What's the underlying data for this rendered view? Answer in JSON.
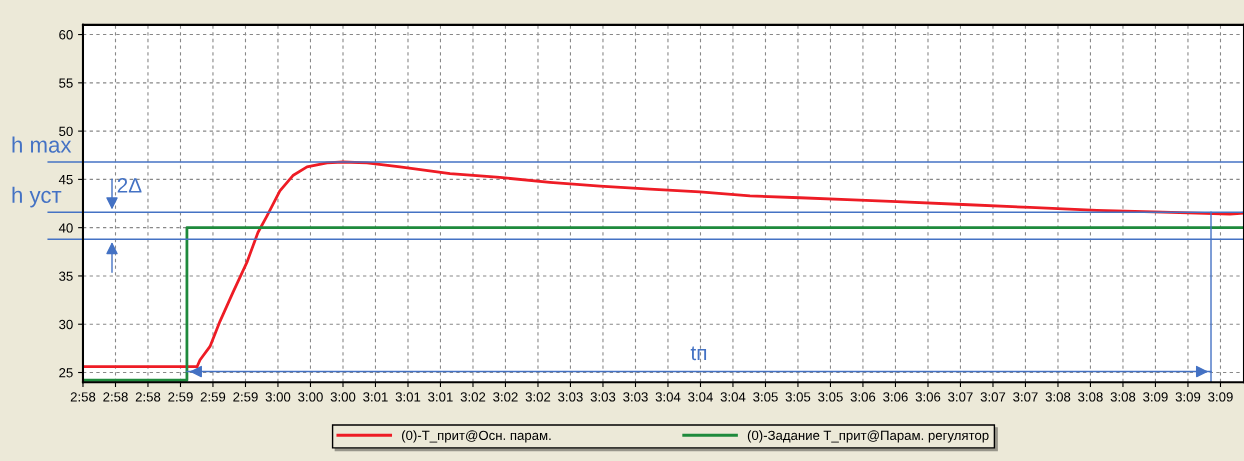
{
  "chart_data": {
    "type": "line",
    "x": [
      2.96111,
      2.98061,
      2.98111,
      2.98283,
      2.98453,
      2.98675,
      2.98913,
      2.99102,
      2.99255,
      2.99477,
      2.997,
      2.99941,
      3.00283,
      3.00555,
      3.00966,
      3.0153,
      3.02386,
      3.03238,
      3.04094,
      3.0495,
      3.05802,
      3.06658,
      3.07513,
      3.08366,
      3.09172,
      3.10025,
      3.11155,
      3.123,
      3.13444,
      3.14572,
      3.15719,
      3.15941
    ],
    "series": [
      {
        "name": "(0)-T_прит@Осн. парам.",
        "color": "#ee1c25",
        "values": [
          25.6,
          25.6,
          26.3,
          27.7,
          30.3,
          33.3,
          36.4,
          39.5,
          41.2,
          43.8,
          45.4,
          46.3,
          46.7,
          46.8,
          46.7,
          46.3,
          45.6,
          45.2,
          44.7,
          44.3,
          44.0,
          43.7,
          43.3,
          43.1,
          42.9,
          42.7,
          42.4,
          42.1,
          41.8,
          41.6,
          41.4,
          41.5
        ]
      },
      {
        "name": "(0)-Задание T_прит@Парам. регулятор",
        "color": "#1e8a3c",
        "type": "step",
        "x": [
          2.96111,
          2.97888,
          3.15958
        ],
        "values": [
          24.2,
          40,
          40
        ]
      },
      {
        "color": "#4472c4",
        "type": "line",
        "x": [
          2.97888,
          3.15394
        ],
        "values": [
          25.1,
          25.1
        ]
      }
    ],
    "xlim": [
      2.96111,
      3.15958
    ],
    "ylim": [
      24,
      61
    ],
    "xticks": [
      {
        "value": 2.96111,
        "label": "2:58"
      },
      {
        "value": 2.96667,
        "label": "2:58"
      },
      {
        "value": 2.97222,
        "label": "2:58"
      },
      {
        "value": 2.97778,
        "label": "2:59"
      },
      {
        "value": 2.98333,
        "label": "2:59"
      },
      {
        "value": 2.98889,
        "label": "2:59"
      },
      {
        "value": 2.99444,
        "label": "3:00"
      },
      {
        "value": 3.0,
        "label": "3:00"
      },
      {
        "value": 3.00556,
        "label": "3:00"
      },
      {
        "value": 3.01111,
        "label": "3:01"
      },
      {
        "value": 3.01667,
        "label": "3:01"
      },
      {
        "value": 3.02222,
        "label": "3:01"
      },
      {
        "value": 3.02778,
        "label": "3:02"
      },
      {
        "value": 3.03333,
        "label": "3:02"
      },
      {
        "value": 3.03889,
        "label": "3:02"
      },
      {
        "value": 3.04444,
        "label": "3:03"
      },
      {
        "value": 3.05,
        "label": "3:03"
      },
      {
        "value": 3.05556,
        "label": "3:03"
      },
      {
        "value": 3.06111,
        "label": "3:04"
      },
      {
        "value": 3.06667,
        "label": "3:04"
      },
      {
        "value": 3.07222,
        "label": "3:04"
      },
      {
        "value": 3.07778,
        "label": "3:05"
      },
      {
        "value": 3.08333,
        "label": "3:05"
      },
      {
        "value": 3.08889,
        "label": "3:05"
      },
      {
        "value": 3.09444,
        "label": "3:06"
      },
      {
        "value": 3.1,
        "label": "3:06"
      },
      {
        "value": 3.10556,
        "label": "3:06"
      },
      {
        "value": 3.11111,
        "label": "3:07"
      },
      {
        "value": 3.11667,
        "label": "3:07"
      },
      {
        "value": 3.12222,
        "label": "3:07"
      },
      {
        "value": 3.12778,
        "label": "3:08"
      },
      {
        "value": 3.13333,
        "label": "3:08"
      },
      {
        "value": 3.13889,
        "label": "3:08"
      },
      {
        "value": 3.14444,
        "label": "3:09"
      },
      {
        "value": 3.15,
        "label": "3:09"
      },
      {
        "value": 3.15556,
        "label": "3:09"
      }
    ],
    "yticks": [
      25,
      30,
      35,
      40,
      45,
      50,
      55,
      60
    ],
    "grid": true,
    "legend": "bottom",
    "line_style": "solid",
    "marker": "none",
    "ref_lines": [
      {
        "axis": "y",
        "value": 46.8,
        "label": "h max",
        "color": "#4472c4"
      },
      {
        "axis": "y",
        "value": 41.6,
        "label": "h уст",
        "color": "#4472c4"
      },
      {
        "axis": "y",
        "value": 38.8,
        "color": "#4472c4"
      },
      {
        "axis": "x",
        "value": 3.15394,
        "color": "#4472c4"
      }
    ],
    "annotations": [
      "2Δ",
      "tп"
    ]
  }
}
